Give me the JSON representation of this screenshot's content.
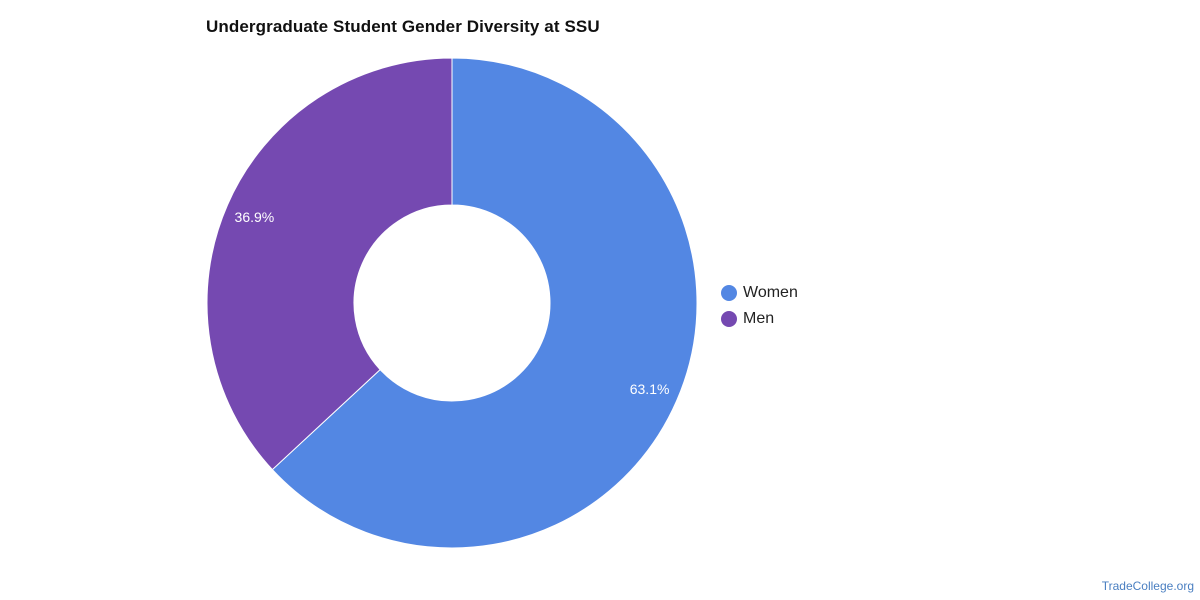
{
  "chart_data": {
    "type": "pie",
    "title": "Undergraduate Student Gender Diversity at SSU",
    "categories": [
      "Women",
      "Men"
    ],
    "values": [
      63.1,
      36.9
    ],
    "value_labels": [
      "63.1%",
      "36.9%"
    ],
    "colors": [
      "#5387e3",
      "#7549b1"
    ],
    "donut": true,
    "legend_position": "right"
  },
  "legend": {
    "items": [
      {
        "label": "Women",
        "color": "#5387e3"
      },
      {
        "label": "Men",
        "color": "#7549b1"
      }
    ]
  },
  "footer": {
    "source": "TradeCollege.org"
  }
}
